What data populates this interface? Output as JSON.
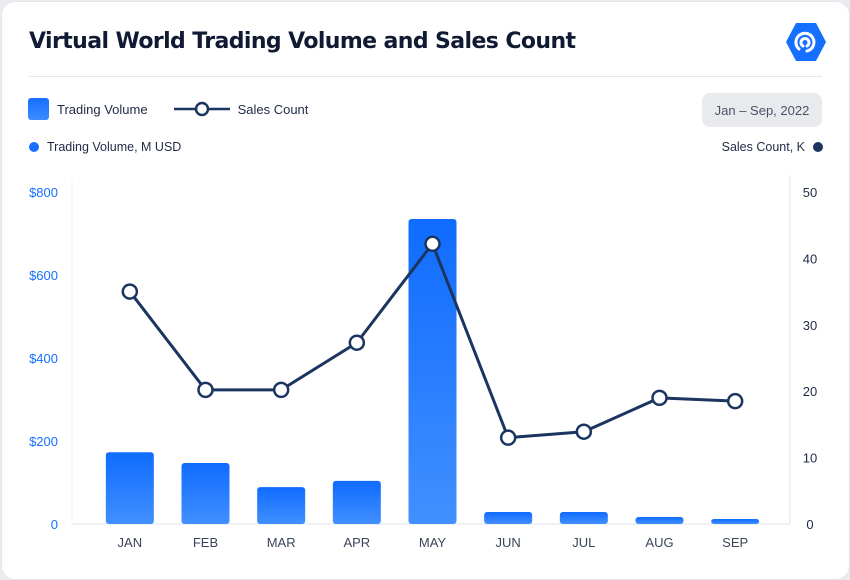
{
  "header": {
    "title": "Virtual World Trading Volume and Sales Count",
    "logo": "hexagon-signal-logo"
  },
  "legend": {
    "bar_label": "Trading Volume",
    "line_label": "Sales Count"
  },
  "date_range": "Jan – Sep, 2022",
  "axis_titles": {
    "left": "Trading Volume, M USD",
    "right": "Sales Count, K"
  },
  "colors": {
    "bar": "#1570ff",
    "line": "#1b3560",
    "left_axis": "#1570ff",
    "right_axis": "#1f2a44"
  },
  "chart_data": {
    "type": "bar+line",
    "categories": [
      "JAN",
      "FEB",
      "MAR",
      "APR",
      "MAY",
      "JUN",
      "JUL",
      "AUG",
      "SEP"
    ],
    "series": [
      {
        "name": "Trading Volume",
        "type": "bar",
        "axis": "left",
        "values": [
          173,
          147,
          89,
          104,
          735,
          29,
          29,
          17,
          12
        ]
      },
      {
        "name": "Sales Count",
        "type": "line",
        "axis": "right",
        "values": [
          35,
          20.2,
          20.2,
          27.3,
          42.2,
          13,
          13.9,
          19,
          18.5
        ]
      }
    ],
    "left_axis": {
      "label": "Trading Volume, M USD",
      "ylim": [
        0,
        800
      ],
      "ticks": [
        "0",
        "$200",
        "$400",
        "$600",
        "$800"
      ]
    },
    "right_axis": {
      "label": "Sales Count, K",
      "ylim": [
        0,
        50
      ],
      "ticks": [
        "0",
        "10",
        "20",
        "30",
        "40",
        "50"
      ]
    },
    "grid": false,
    "legend_position": "top-left"
  }
}
